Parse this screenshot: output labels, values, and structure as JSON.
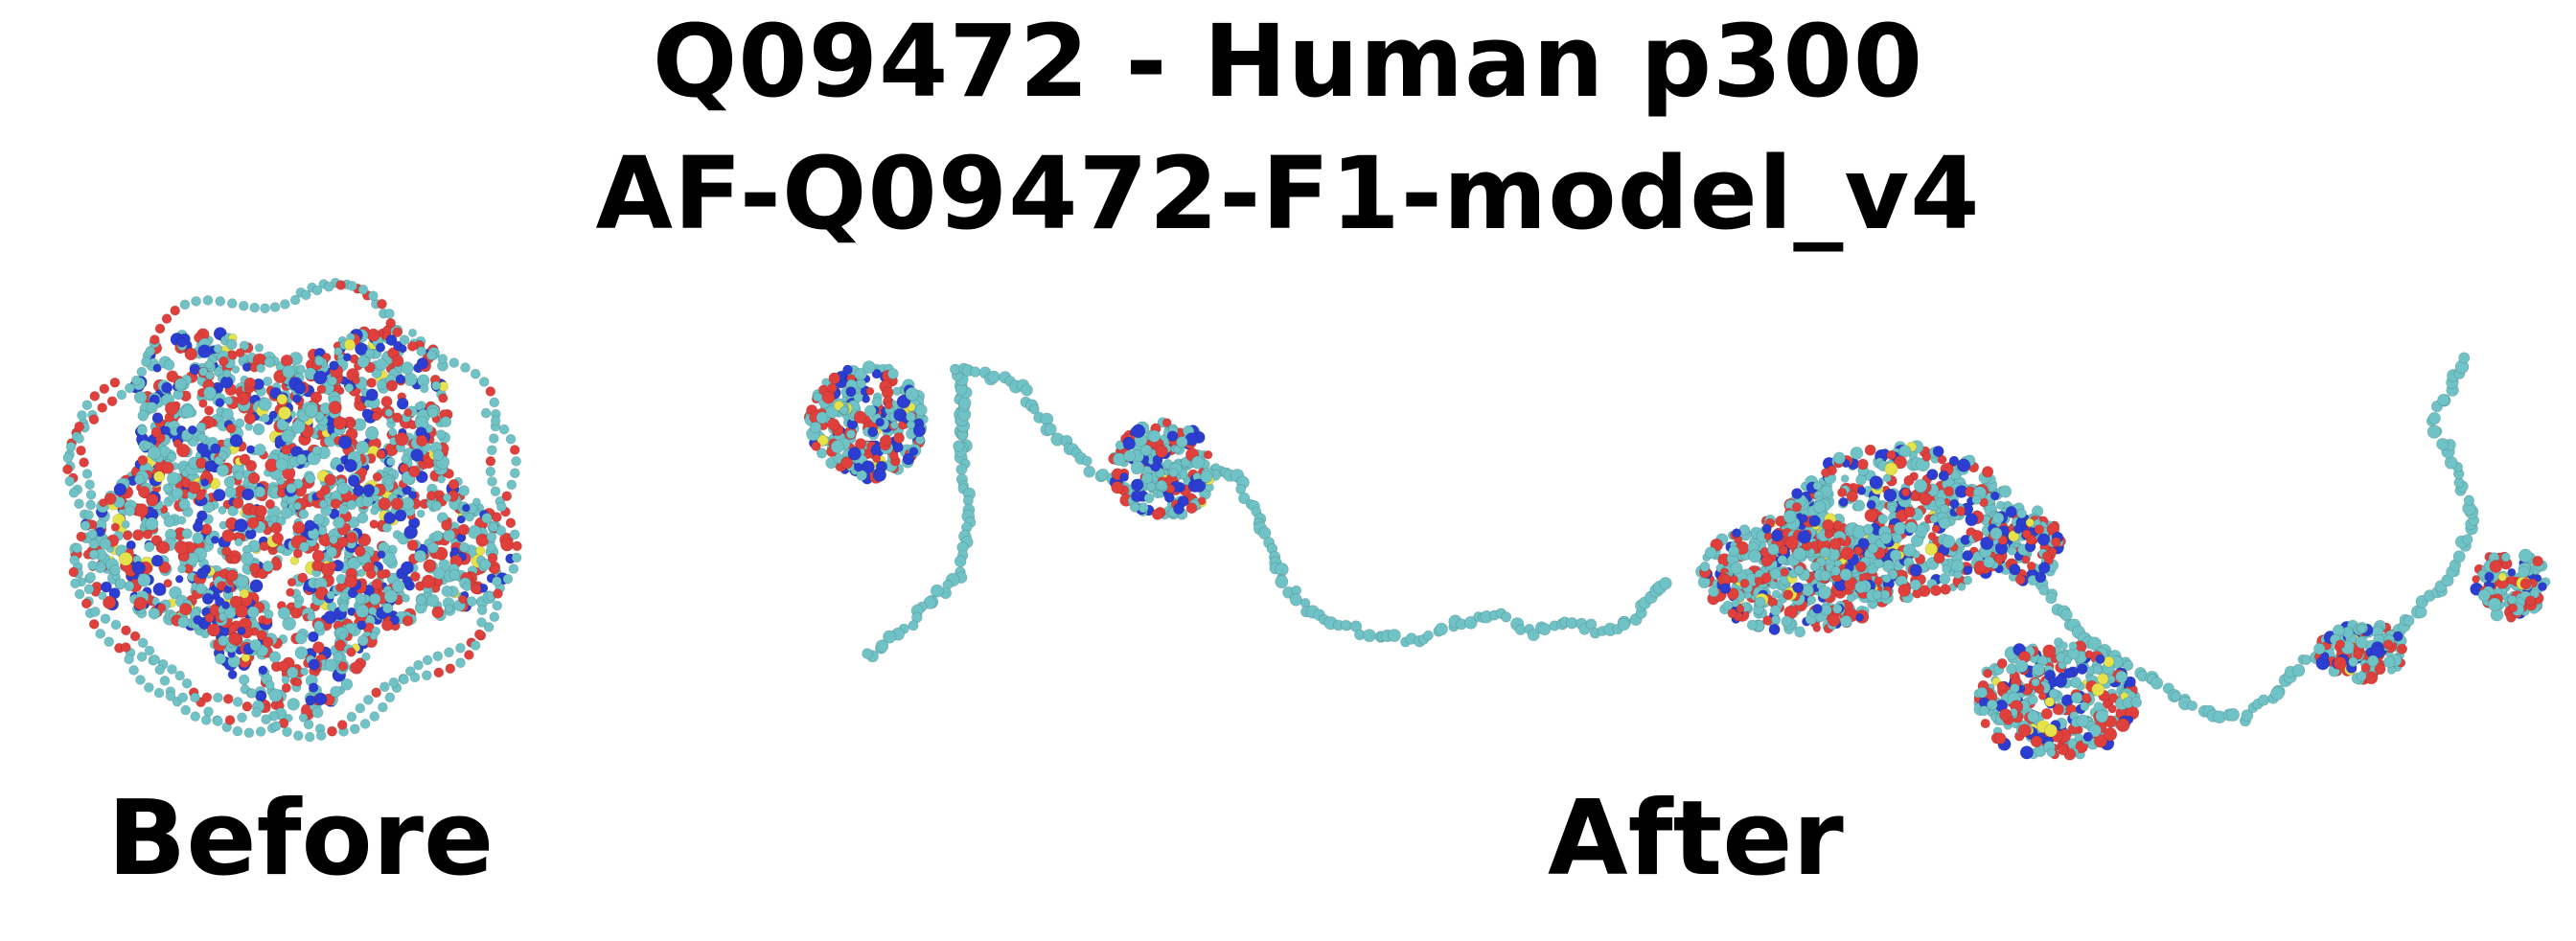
{
  "title_line1": "Q09472 - Human p300",
  "title_line2": "AF-Q09472-F1-model_v4",
  "caption_before": "Before",
  "caption_after": "After",
  "colors": {
    "carbon": "#6fc2c6",
    "oxygen": "#e0403c",
    "nitrogen": "#2b3ed1",
    "sulfur": "#e6e24a",
    "background": "#ffffff"
  }
}
